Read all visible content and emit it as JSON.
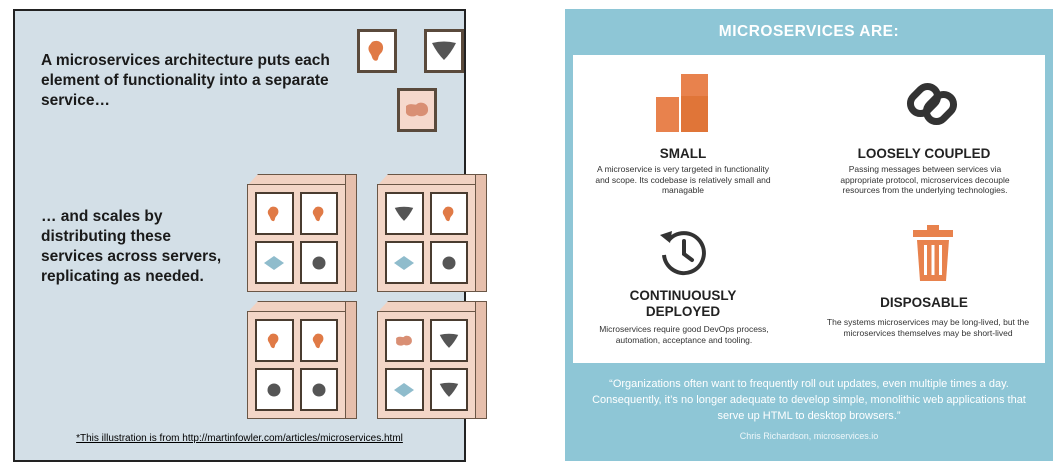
{
  "left": {
    "heading": "A microservices architecture puts each element of functionality into a separate service…",
    "subheading": "… and scales by distributing these services across servers, replicating as needed.",
    "footnote": "*This illustration is from http://martinfowler.com/articles/microservices.html",
    "colors": {
      "orange": "#e07a46",
      "dark": "#555555",
      "blue": "#8fbccc",
      "pink": "#d98f74"
    }
  },
  "right": {
    "banner": "MICROSERVICES ARE:",
    "sections": [
      {
        "title": "SMALL",
        "desc": "A microservice is very targeted in functionality and scope. Its codebase is relatively small and managable",
        "icon": "blocks-icon"
      },
      {
        "title": "LOOSELY COUPLED",
        "desc": "Passing messages between services via appropriate protocol, microservices decouple resources from the underlying technologies.",
        "icon": "chain-link-icon"
      },
      {
        "title": "CONTINUOUSLY DEPLOYED",
        "desc": "Microservices require good DevOps process, automation, acceptance and tooling.",
        "icon": "history-clock-icon"
      },
      {
        "title": "DISPOSABLE",
        "desc": "The systems microservices may be long-lived, but the microservices themselves may be short-lived",
        "icon": "trash-can-icon"
      }
    ],
    "quote": "“Organizations often want to frequently roll out updates, even multiple times a day. Consequently, it’s no longer adequate to develop simple, monolithic web applications that serve up HTML to desktop browsers.”",
    "attribution": "Chris Richardson, microservices.io",
    "colors": {
      "teal": "#8ec6d6",
      "orange": "#e8824d"
    }
  }
}
